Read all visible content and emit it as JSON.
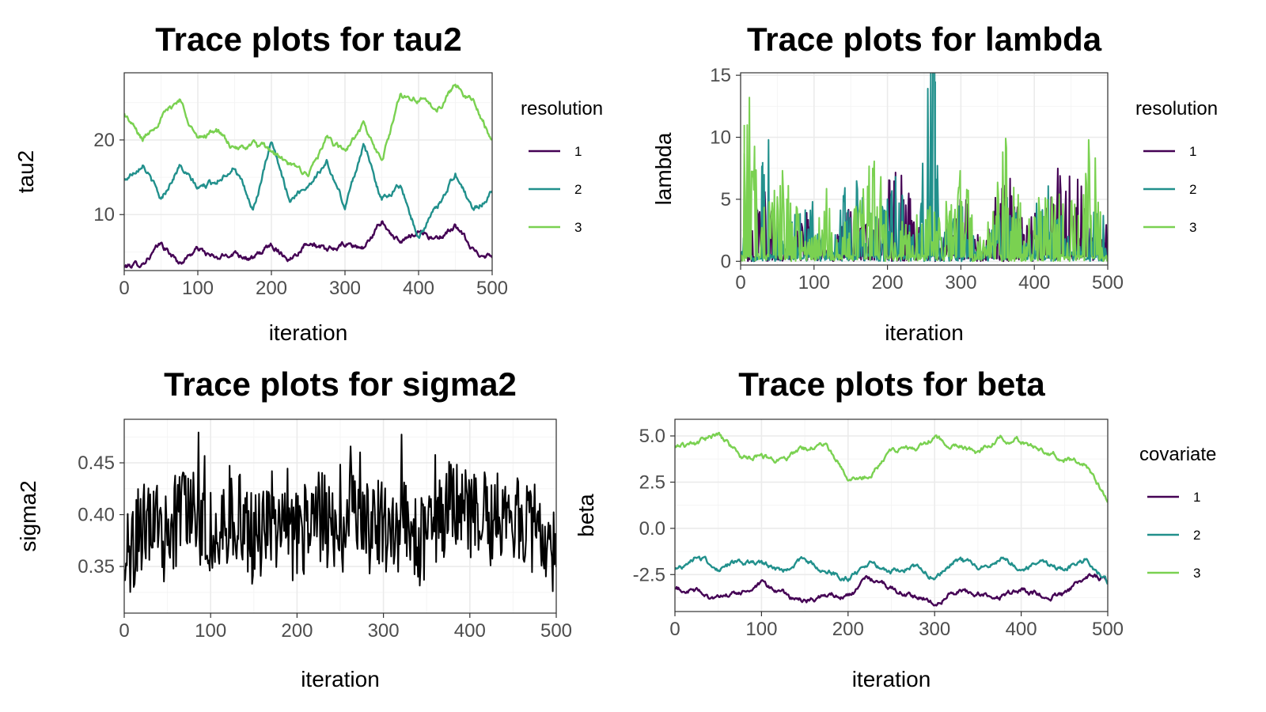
{
  "chart_data": [
    {
      "id": "tau2",
      "type": "line",
      "title": "Trace plots for tau2",
      "xlabel": "iteration",
      "ylabel": "tau2",
      "xlim": [
        0,
        500
      ],
      "ylim": [
        2.5,
        29
      ],
      "xticks": [
        0,
        100,
        200,
        300,
        400,
        500
      ],
      "yticks": [
        10,
        20
      ],
      "legend": {
        "title": "resolution",
        "position": "right",
        "entries": [
          "1",
          "2",
          "3"
        ]
      },
      "series": [
        {
          "name": "1",
          "color": "#440154",
          "x": [
            0,
            25,
            50,
            75,
            100,
            125,
            150,
            175,
            200,
            225,
            250,
            275,
            300,
            325,
            350,
            375,
            400,
            425,
            450,
            475,
            500
          ],
          "values": [
            3.0,
            3.5,
            6.0,
            3.5,
            5.5,
            4.0,
            5.0,
            4.0,
            6.0,
            4.0,
            6.5,
            5.0,
            6.0,
            5.5,
            9.0,
            6.0,
            8.0,
            6.5,
            8.5,
            5.0,
            4.5
          ]
        },
        {
          "name": "2",
          "color": "#21908C",
          "x": [
            0,
            25,
            50,
            75,
            100,
            125,
            150,
            175,
            200,
            225,
            250,
            275,
            300,
            325,
            350,
            375,
            400,
            425,
            450,
            475,
            500
          ],
          "values": [
            14.5,
            17.0,
            12.0,
            16.5,
            13.5,
            14.5,
            16.5,
            10.5,
            19.5,
            12.0,
            14.0,
            17.0,
            11.0,
            19.5,
            12.0,
            14.0,
            7.0,
            11.0,
            15.5,
            10.5,
            13.0
          ]
        },
        {
          "name": "3",
          "color": "#7AD151",
          "x": [
            0,
            25,
            50,
            75,
            100,
            125,
            150,
            175,
            200,
            225,
            250,
            275,
            300,
            325,
            350,
            375,
            400,
            425,
            450,
            475,
            500
          ],
          "values": [
            23.5,
            20.0,
            23.0,
            25.5,
            20.0,
            21.5,
            18.5,
            19.5,
            18.5,
            16.5,
            15.5,
            20.0,
            18.5,
            22.0,
            17.0,
            26.0,
            25.5,
            24.0,
            27.5,
            25.0,
            20.0
          ]
        }
      ]
    },
    {
      "id": "lambda",
      "type": "line",
      "title": "Trace plots for lambda",
      "xlabel": "iteration",
      "ylabel": "lambda",
      "xlim": [
        0,
        500
      ],
      "ylim": [
        -0.3,
        15.2
      ],
      "xticks": [
        0,
        100,
        200,
        300,
        400,
        500
      ],
      "yticks": [
        0,
        5,
        10,
        15
      ],
      "legend": {
        "title": "resolution",
        "position": "right",
        "entries": [
          "1",
          "2",
          "3"
        ]
      },
      "series": [
        {
          "name": "1",
          "color": "#440154",
          "x": [
            0,
            30,
            60,
            90,
            120,
            150,
            180,
            210,
            240,
            270,
            300,
            330,
            360,
            390,
            420,
            450,
            480,
            500
          ],
          "values": [
            0.3,
            4.0,
            1.0,
            2.5,
            0.5,
            3.0,
            1.5,
            6.0,
            2.0,
            0.5,
            4.0,
            1.0,
            5.0,
            2.0,
            3.5,
            6.5,
            1.0,
            2.0
          ]
        },
        {
          "name": "2",
          "color": "#21908C",
          "x": [
            0,
            30,
            60,
            90,
            120,
            150,
            180,
            210,
            240,
            265,
            270,
            300,
            330,
            360,
            390,
            420,
            450,
            480,
            500
          ],
          "values": [
            0.5,
            8.0,
            1.0,
            4.0,
            0.5,
            5.5,
            2.0,
            4.5,
            1.0,
            14.5,
            1.0,
            3.0,
            0.5,
            4.0,
            1.5,
            5.0,
            1.0,
            2.5,
            3.5
          ]
        },
        {
          "name": "3",
          "color": "#7AD151",
          "x": [
            0,
            5,
            30,
            60,
            90,
            120,
            150,
            180,
            210,
            240,
            270,
            300,
            330,
            360,
            390,
            420,
            450,
            480,
            500
          ],
          "values": [
            0.5,
            11.0,
            3.0,
            5.0,
            1.0,
            4.0,
            2.0,
            6.0,
            1.5,
            4.0,
            2.5,
            5.0,
            1.0,
            6.5,
            2.0,
            4.5,
            3.0,
            7.0,
            1.0
          ]
        }
      ]
    },
    {
      "id": "sigma2",
      "type": "line",
      "title": "Trace plots for sigma2",
      "xlabel": "iteration",
      "ylabel": "sigma2",
      "xlim": [
        0,
        500
      ],
      "ylim": [
        0.305,
        0.492
      ],
      "xticks": [
        0,
        100,
        200,
        300,
        400,
        500
      ],
      "yticks": [
        0.35,
        0.4,
        0.45
      ],
      "yticklabels": [
        "0.35",
        "0.40",
        "0.45"
      ],
      "series": [
        {
          "name": "",
          "color": "#000000",
          "x": [
            0,
            25,
            50,
            75,
            100,
            125,
            150,
            175,
            200,
            225,
            250,
            275,
            300,
            325,
            350,
            375,
            400,
            425,
            450,
            475,
            500
          ],
          "values": [
            0.355,
            0.395,
            0.375,
            0.405,
            0.385,
            0.4,
            0.375,
            0.39,
            0.38,
            0.4,
            0.385,
            0.405,
            0.385,
            0.39,
            0.37,
            0.41,
            0.4,
            0.395,
            0.4,
            0.385,
            0.36
          ]
        }
      ]
    },
    {
      "id": "beta",
      "type": "line",
      "title": "Trace plots for beta",
      "xlabel": "iteration",
      "ylabel": "beta",
      "xlim": [
        0,
        500
      ],
      "ylim": [
        -4.5,
        5.9
      ],
      "xticks": [
        0,
        100,
        200,
        300,
        400,
        500
      ],
      "yticks": [
        -2.5,
        0.0,
        2.5,
        5.0
      ],
      "yticklabels": [
        "-2.5",
        "0.0",
        "2.5",
        "5.0"
      ],
      "legend": {
        "title": "covariate",
        "position": "right",
        "entries": [
          "1",
          "2",
          "3"
        ]
      },
      "series": [
        {
          "name": "1",
          "color": "#440154",
          "x": [
            0,
            25,
            50,
            75,
            100,
            125,
            150,
            175,
            200,
            225,
            250,
            275,
            300,
            325,
            350,
            375,
            400,
            425,
            450,
            475,
            500
          ],
          "values": [
            -3.3,
            -3.4,
            -3.8,
            -3.5,
            -3.1,
            -3.5,
            -4.0,
            -3.6,
            -3.7,
            -2.7,
            -3.3,
            -3.6,
            -4.0,
            -3.4,
            -3.5,
            -3.7,
            -3.3,
            -3.6,
            -3.6,
            -2.6,
            -2.8
          ]
        },
        {
          "name": "2",
          "color": "#21908C",
          "x": [
            0,
            25,
            50,
            75,
            100,
            125,
            150,
            175,
            200,
            225,
            250,
            275,
            300,
            325,
            350,
            375,
            400,
            425,
            450,
            475,
            500
          ],
          "values": [
            -2.3,
            -1.5,
            -2.2,
            -1.8,
            -2.0,
            -2.3,
            -1.6,
            -2.4,
            -2.7,
            -1.8,
            -2.3,
            -2.0,
            -2.7,
            -1.6,
            -2.2,
            -1.6,
            -2.1,
            -1.9,
            -2.2,
            -1.7,
            -3.0
          ]
        },
        {
          "name": "3",
          "color": "#7AD151",
          "x": [
            0,
            25,
            50,
            75,
            100,
            125,
            150,
            175,
            200,
            225,
            250,
            275,
            300,
            325,
            350,
            375,
            400,
            425,
            450,
            475,
            500
          ],
          "values": [
            4.4,
            4.6,
            5.1,
            3.9,
            3.8,
            3.7,
            4.3,
            4.5,
            2.8,
            2.9,
            4.2,
            4.3,
            4.9,
            4.5,
            4.1,
            5.0,
            4.7,
            4.2,
            3.8,
            3.4,
            1.6
          ]
        }
      ]
    }
  ]
}
